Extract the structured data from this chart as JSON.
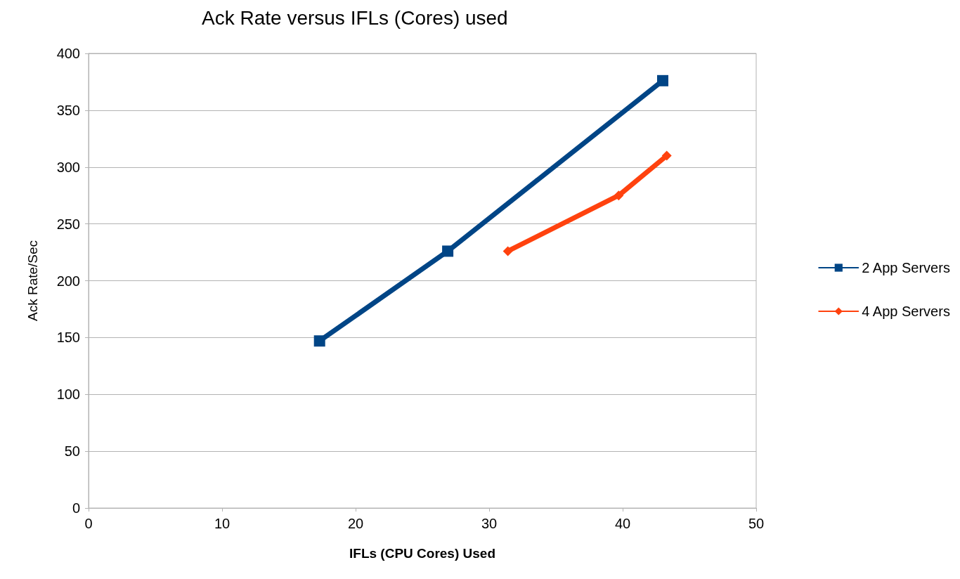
{
  "chart_data": {
    "type": "line",
    "title": "Ack Rate versus IFLs (Cores) used",
    "xlabel": "IFLs (CPU Cores) Used",
    "ylabel": "Ack Rate/Sec",
    "series": [
      {
        "name": "2 App Servers",
        "color": "#004586",
        "marker": "square",
        "x": [
          17.3,
          26.9,
          43.0
        ],
        "values": [
          147,
          226,
          376
        ]
      },
      {
        "name": "4 App Servers",
        "color": "#ff420e",
        "marker": "diamond",
        "x": [
          31.4,
          39.7,
          43.3
        ],
        "values": [
          226,
          275,
          310
        ]
      }
    ],
    "xlim": [
      0,
      50
    ],
    "xticks": [
      0,
      10,
      20,
      30,
      40,
      50
    ],
    "ylim": [
      0,
      400
    ],
    "yticks": [
      0,
      50,
      100,
      150,
      200,
      250,
      300,
      350,
      400
    ],
    "grid": "y",
    "legend": "right"
  }
}
